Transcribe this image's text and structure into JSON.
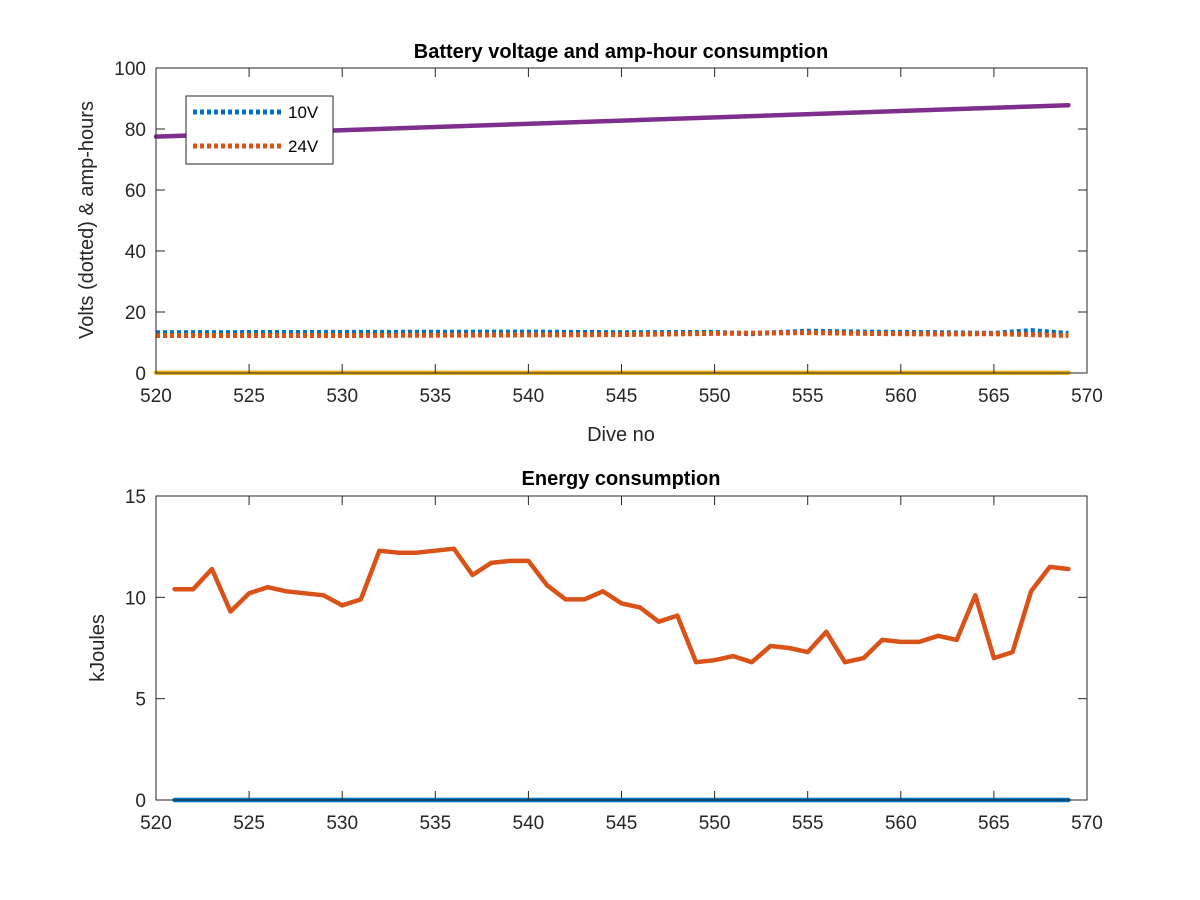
{
  "chart_data": [
    {
      "type": "line",
      "title": "Battery voltage and amp-hour consumption",
      "xlabel": "Dive no",
      "ylabel": "Volts (dotted) & amp-hours",
      "xlim": [
        520,
        570
      ],
      "ylim": [
        0,
        100
      ],
      "xticks": [
        "520",
        "525",
        "530",
        "535",
        "540",
        "545",
        "550",
        "555",
        "560",
        "565",
        "570"
      ],
      "yticks": [
        "0",
        "20",
        "40",
        "60",
        "80",
        "100"
      ],
      "grid": false,
      "legend": {
        "placement": "top-left",
        "entries": [
          "10V",
          "24V"
        ]
      },
      "series": [
        {
          "name": "10V",
          "style": "dotted",
          "color": "#0072BD",
          "x": [
            520,
            530,
            540,
            545,
            550,
            552,
            555,
            558,
            562,
            565,
            567,
            569
          ],
          "y": [
            13.2,
            13.3,
            13.4,
            13.2,
            13.3,
            12.9,
            13.7,
            13.4,
            13.2,
            13.0,
            13.9,
            13.0
          ]
        },
        {
          "name": "24V",
          "style": "dotted",
          "color": "#D95319",
          "x": [
            520,
            530,
            540,
            545,
            550,
            555,
            558,
            562,
            565,
            569
          ],
          "y": [
            12.3,
            12.3,
            12.5,
            12.6,
            13.0,
            13.2,
            13.0,
            12.8,
            12.9,
            12.3
          ]
        },
        {
          "style": "solid",
          "color": "#7E2F8E",
          "x": [
            520,
            569
          ],
          "y": [
            77.5,
            87.8
          ]
        },
        {
          "style": "solid",
          "color": "#EDB120",
          "x": [
            520,
            569
          ],
          "y": [
            0.1,
            0.1
          ]
        }
      ]
    },
    {
      "type": "line",
      "title": "Energy consumption",
      "xlabel": "",
      "ylabel": "kJoules",
      "xlim": [
        520,
        570
      ],
      "ylim": [
        0,
        15
      ],
      "xticks": [
        "520",
        "525",
        "530",
        "535",
        "540",
        "545",
        "550",
        "555",
        "560",
        "565",
        "570"
      ],
      "yticks": [
        "0",
        "5",
        "10",
        "15"
      ],
      "grid": false,
      "series": [
        {
          "style": "solid",
          "color": "#D95319",
          "x": [
            521,
            522,
            523,
            524,
            525,
            526,
            527,
            528,
            529,
            530,
            531,
            532,
            533,
            534,
            535,
            536,
            537,
            538,
            539,
            540,
            541,
            542,
            543,
            544,
            545,
            546,
            547,
            548,
            549,
            550,
            551,
            552,
            553,
            554,
            555,
            556,
            557,
            558,
            559,
            560,
            561,
            562,
            563,
            564,
            565,
            566,
            567,
            568,
            569
          ],
          "y": [
            10.4,
            10.4,
            11.4,
            9.3,
            10.2,
            10.5,
            10.3,
            10.2,
            10.1,
            9.6,
            9.9,
            12.3,
            12.2,
            12.2,
            12.3,
            12.4,
            11.1,
            11.7,
            11.8,
            11.8,
            10.6,
            9.9,
            9.9,
            10.3,
            9.7,
            9.5,
            8.8,
            9.1,
            6.8,
            6.9,
            7.1,
            6.8,
            7.6,
            7.5,
            7.3,
            8.3,
            6.8,
            7.0,
            7.9,
            7.8,
            7.8,
            8.1,
            7.9,
            10.1,
            7.0,
            7.3,
            10.3,
            11.5,
            11.4
          ]
        },
        {
          "style": "solid",
          "color": "#0072BD",
          "x": [
            521,
            569
          ],
          "y": [
            0.0,
            0.0
          ]
        }
      ]
    }
  ]
}
